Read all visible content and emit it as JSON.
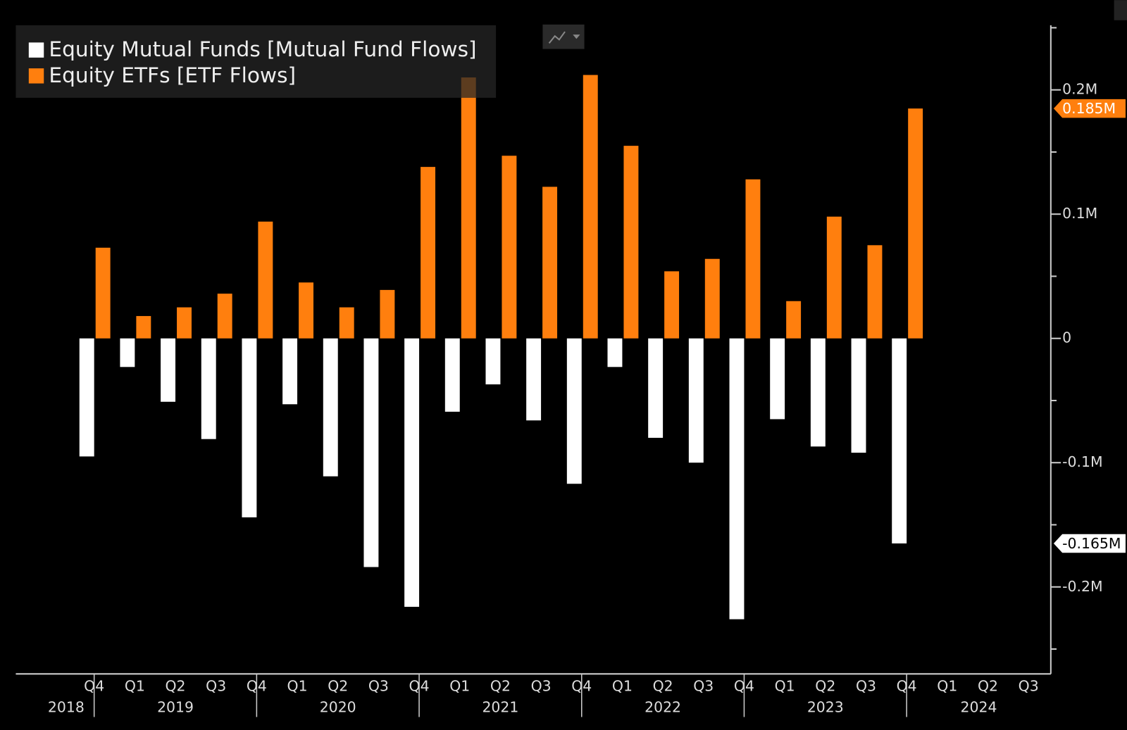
{
  "chart_data": {
    "type": "bar",
    "categories": [
      "Q4",
      "Q1",
      "Q2",
      "Q3",
      "Q4",
      "Q1",
      "Q2",
      "Q3",
      "Q4",
      "Q1",
      "Q2",
      "Q3",
      "Q4",
      "Q1",
      "Q2",
      "Q3",
      "Q4",
      "Q1",
      "Q2",
      "Q3",
      "Q4",
      "Q1",
      "Q2",
      "Q3"
    ],
    "year_groups": [
      {
        "label": "2018",
        "size": 1
      },
      {
        "label": "2019",
        "size": 4
      },
      {
        "label": "2020",
        "size": 4
      },
      {
        "label": "2021",
        "size": 4
      },
      {
        "label": "2022",
        "size": 4
      },
      {
        "label": "2023",
        "size": 4
      },
      {
        "label": "2024",
        "size": 3
      }
    ],
    "series": [
      {
        "name": "Equity Mutual Funds [Mutual Fund Flows]",
        "color": "#ffffff",
        "label_text_color": "#000000",
        "values": [
          -0.095,
          -0.023,
          -0.051,
          -0.081,
          -0.144,
          -0.053,
          -0.111,
          -0.184,
          -0.216,
          -0.059,
          -0.037,
          -0.066,
          -0.117,
          -0.023,
          -0.08,
          -0.1,
          -0.226,
          -0.065,
          -0.087,
          -0.092,
          -0.165,
          null,
          null,
          null
        ],
        "value_labels": [
          null,
          null,
          null,
          null,
          null,
          null,
          null,
          null,
          null,
          null,
          null,
          null,
          null,
          null,
          null,
          null,
          null,
          null,
          null,
          null,
          "-0.165M",
          null,
          null,
          null
        ]
      },
      {
        "name": "Equity ETFs [ETF Flows]",
        "color": "#ff7f0e",
        "label_text_color": "#ffffff",
        "values": [
          0.073,
          0.018,
          0.025,
          0.036,
          0.094,
          0.045,
          0.025,
          0.039,
          0.138,
          0.21,
          0.147,
          0.122,
          0.212,
          0.155,
          0.054,
          0.064,
          0.128,
          0.03,
          0.098,
          0.075,
          0.185,
          null,
          null,
          null
        ],
        "value_labels": [
          null,
          null,
          null,
          null,
          null,
          null,
          null,
          null,
          null,
          null,
          null,
          null,
          null,
          null,
          null,
          null,
          null,
          null,
          null,
          null,
          "0.185M",
          null,
          null,
          null
        ]
      }
    ],
    "ylim": [
      -0.27,
      0.252
    ],
    "yticks": [
      {
        "value": -0.2,
        "label": "-0.2M"
      },
      {
        "value": -0.1,
        "label": "-0.1M"
      },
      0,
      {
        "value": 0.1,
        "label": "0.1M"
      },
      {
        "value": 0.2,
        "label": "0.2M"
      }
    ],
    "minor_yticks": [
      -0.25,
      -0.15,
      -0.05,
      0.05,
      0.15,
      0.25
    ],
    "legend": "top-left"
  }
}
